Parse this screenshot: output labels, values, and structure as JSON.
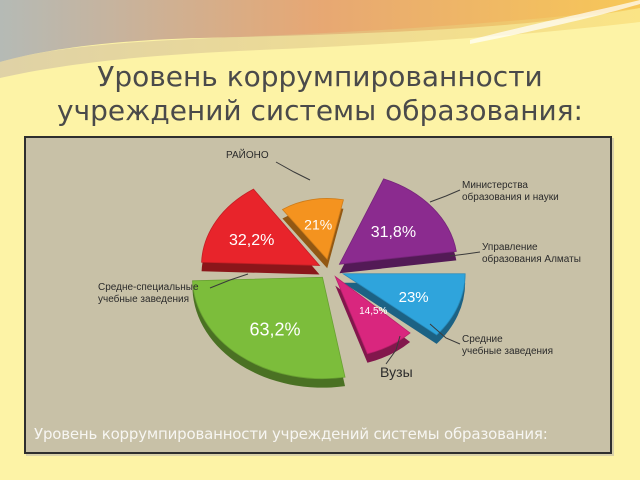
{
  "slide": {
    "title_line1": "Уровень коррумпированности",
    "title_line2": "учреждений системы образования:",
    "caption": "Уровень коррумпированности учреждений системы образования:"
  },
  "chart_data": {
    "type": "pie",
    "title": "",
    "slices": [
      {
        "label": "РАЙОНО",
        "value": 21,
        "display": "21%",
        "color": "#f4931f"
      },
      {
        "label": "Министерства образования и науки",
        "value": 31.8,
        "display": "31,8%",
        "color": "#8b2b8f"
      },
      {
        "label": "Управление образования Алматы",
        "value": 23,
        "display": "23%",
        "color": "#2fa4dc"
      },
      {
        "label": "Средние учебные заведения",
        "value": 14.5,
        "display": "14,5%",
        "color": "#d9267e"
      },
      {
        "label": "Вузы",
        "value": 63.2,
        "display": "63,2%",
        "color": "#7cbd3b"
      },
      {
        "label": "Средне-специальные учебные заведения",
        "value": 32.2,
        "display": "32,2%",
        "color": "#e8242b"
      }
    ],
    "category_labels": {
      "rayono": "РАЙОНО",
      "ministry_1": "Министерства",
      "ministry_2": "образования и науки",
      "almaty_1": "Управление",
      "almaty_2": "образования Алматы",
      "secondary_1": "Средние",
      "secondary_2": "учебные заведения",
      "vuzy": "Вузы",
      "special_1": "Средне-специальные",
      "special_2": "учебные заведения"
    }
  }
}
